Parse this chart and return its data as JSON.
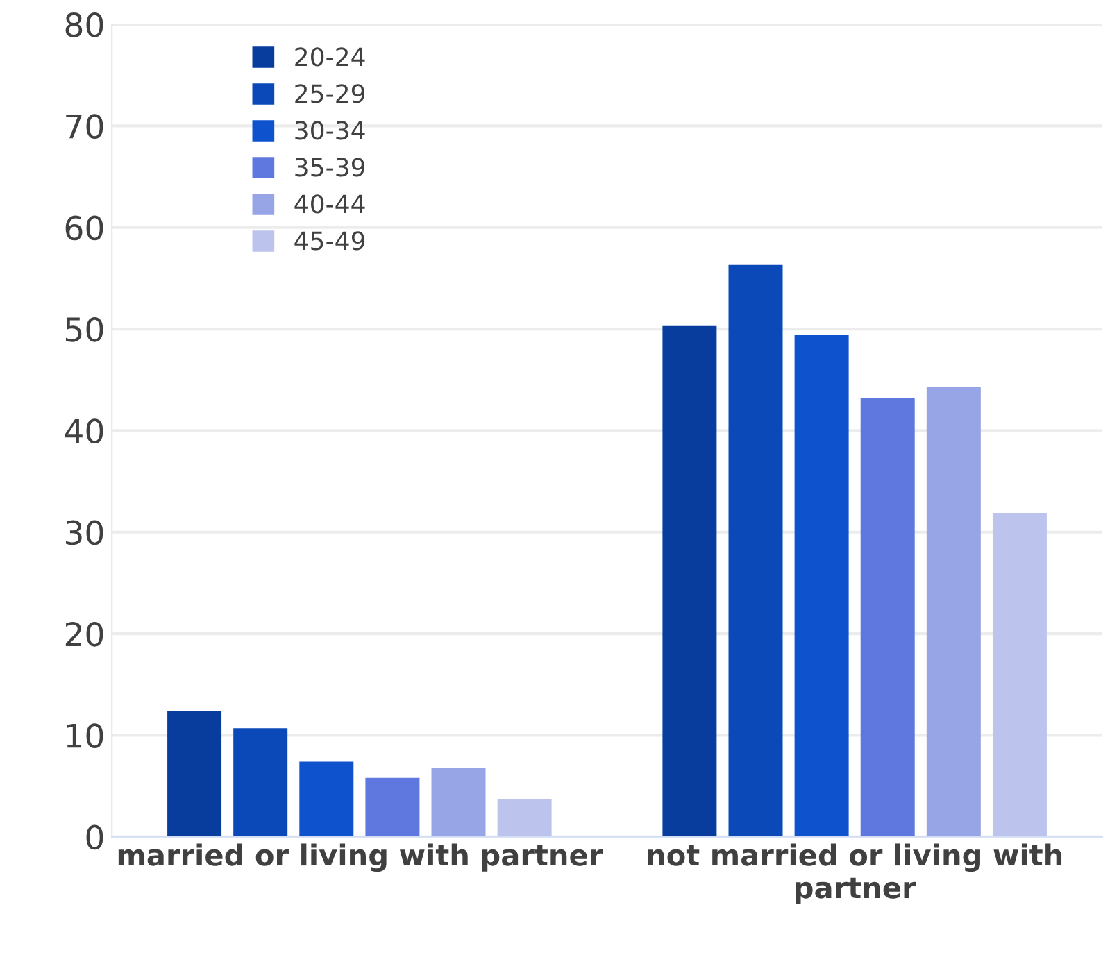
{
  "chart_data": {
    "type": "bar",
    "categories": [
      "married or living with partner",
      "not married or living with partner"
    ],
    "series": [
      {
        "name": "20-24",
        "color": "#083d9e",
        "values": [
          12.4,
          50.3
        ]
      },
      {
        "name": "25-29",
        "color": "#0b48b8",
        "values": [
          10.7,
          56.3
        ]
      },
      {
        "name": "30-34",
        "color": "#0f52ce",
        "values": [
          7.4,
          49.4
        ]
      },
      {
        "name": "35-39",
        "color": "#5f78e0",
        "values": [
          5.8,
          43.2
        ]
      },
      {
        "name": "40-44",
        "color": "#97a5e6",
        "values": [
          6.8,
          44.3
        ]
      },
      {
        "name": "45-49",
        "color": "#bcc4ee",
        "values": [
          3.7,
          31.9
        ]
      }
    ],
    "ylim": [
      0,
      80
    ],
    "yticks": [
      0,
      10,
      20,
      30,
      40,
      50,
      60,
      70,
      80
    ],
    "grid": "y",
    "legend": "top left"
  }
}
